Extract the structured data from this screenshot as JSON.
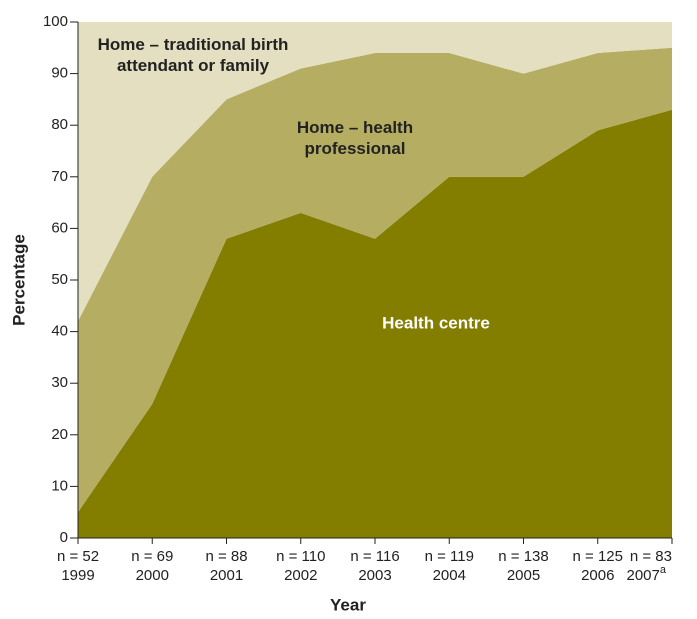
{
  "chart_data": {
    "type": "stacked_area",
    "x_label": "Year",
    "y_label": "Percentage",
    "categories": [
      "1999",
      "2000",
      "2001",
      "2002",
      "2003",
      "2004",
      "2005",
      "2006",
      "2007"
    ],
    "category_notes": [
      null,
      null,
      null,
      null,
      null,
      null,
      null,
      null,
      "a"
    ],
    "sample_sizes": [
      "n = 52",
      "n = 69",
      "n = 88",
      "n = 110",
      "n = 116",
      "n = 119",
      "n = 138",
      "n = 125",
      "n = 83"
    ],
    "series": [
      {
        "name": "Health centre",
        "color": "#847e00",
        "label_color": "#ffffff",
        "values": [
          5,
          26,
          58,
          63,
          58,
          70,
          70,
          79,
          83
        ]
      },
      {
        "name": "Home – health professional",
        "color": "#b5ae62",
        "label_color": "#222222",
        "values": [
          37,
          44,
          27,
          28,
          36,
          24,
          20,
          15,
          12
        ]
      },
      {
        "name": "Home – traditional birth attendant or family",
        "color": "#e3dfc0",
        "label_color": "#222222",
        "values": [
          58,
          30,
          15,
          9,
          6,
          6,
          10,
          6,
          5
        ]
      }
    ],
    "ylim": [
      0,
      100
    ],
    "yticks": [
      0,
      10,
      20,
      30,
      40,
      50,
      60,
      70,
      80,
      90,
      100
    ]
  }
}
